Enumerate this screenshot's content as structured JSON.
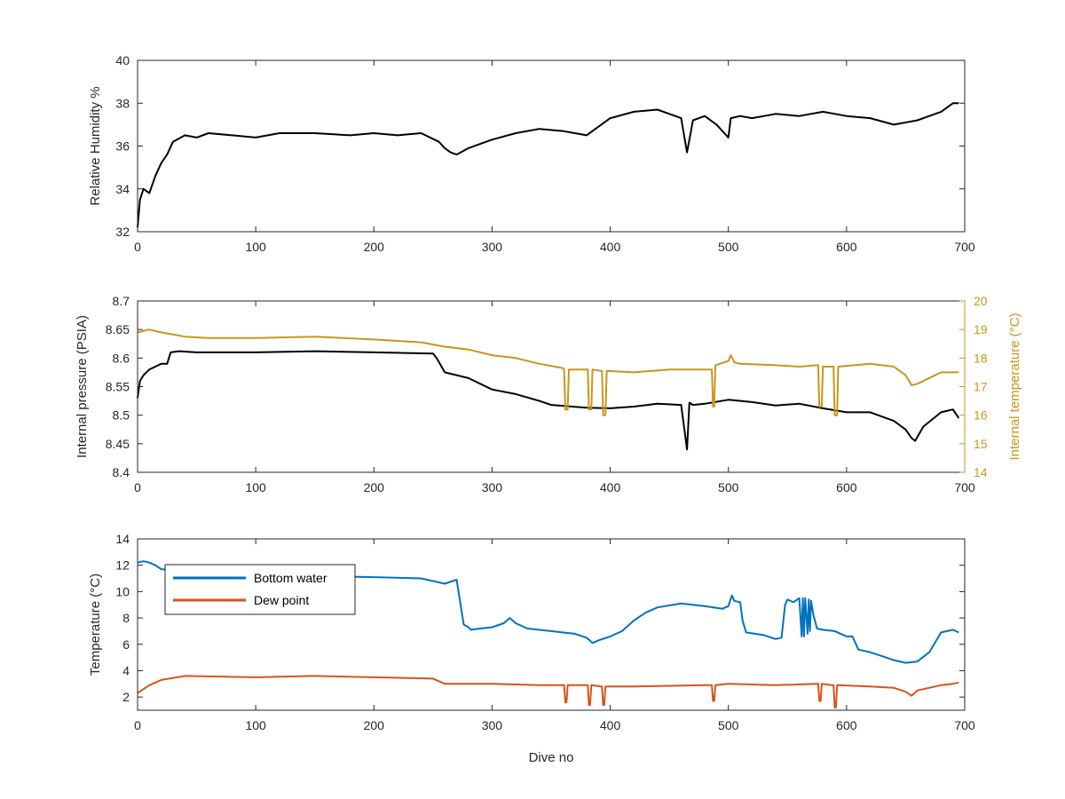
{
  "colors": {
    "black": "#000000",
    "axis": "#262626",
    "internal_temperature": "#C8961E",
    "bottom_water": "#0072BD",
    "dew_point": "#D95319"
  },
  "chart_data": [
    {
      "id": "humidity",
      "type": "line",
      "xlabel": "",
      "ylabel": "Relative Humidity %",
      "xlim": [
        0,
        700
      ],
      "ylim": [
        32,
        40
      ],
      "x_ticks": [
        0,
        100,
        200,
        300,
        400,
        500,
        600,
        700
      ],
      "y_ticks": [
        32,
        34,
        36,
        38,
        40
      ],
      "grid": false,
      "series": [
        {
          "color": "#000000",
          "x": [
            0,
            2,
            5,
            10,
            15,
            20,
            25,
            30,
            40,
            50,
            60,
            80,
            100,
            120,
            150,
            180,
            200,
            220,
            240,
            255,
            260,
            265,
            270,
            280,
            290,
            300,
            320,
            340,
            360,
            380,
            400,
            420,
            440,
            460,
            465,
            470,
            480,
            490,
            500,
            502,
            510,
            520,
            540,
            560,
            580,
            600,
            620,
            640,
            660,
            680,
            690,
            695
          ],
          "y": [
            32.2,
            33.5,
            34.0,
            33.8,
            34.6,
            35.2,
            35.6,
            36.2,
            36.5,
            36.4,
            36.6,
            36.5,
            36.4,
            36.6,
            36.6,
            36.5,
            36.6,
            36.5,
            36.6,
            36.2,
            35.9,
            35.7,
            35.6,
            35.9,
            36.1,
            36.3,
            36.6,
            36.8,
            36.7,
            36.5,
            37.3,
            37.6,
            37.7,
            37.3,
            35.7,
            37.2,
            37.4,
            37.0,
            36.4,
            37.3,
            37.4,
            37.3,
            37.5,
            37.4,
            37.6,
            37.4,
            37.3,
            37.0,
            37.2,
            37.6,
            38.0,
            38.0
          ]
        }
      ]
    },
    {
      "id": "pressure",
      "type": "line",
      "xlabel": "",
      "ylabel": "Internal pressure (PSIA)",
      "y2label": "Internal temperature (°C)",
      "xlim": [
        0,
        700
      ],
      "ylim": [
        8.4,
        8.7
      ],
      "y2lim": [
        14,
        20
      ],
      "x_ticks": [
        0,
        100,
        200,
        300,
        400,
        500,
        600,
        700
      ],
      "y_ticks": [
        8.4,
        8.45,
        8.5,
        8.55,
        8.6,
        8.65,
        8.7
      ],
      "y2_ticks": [
        14,
        15,
        16,
        17,
        18,
        19,
        20
      ],
      "grid": false,
      "series": [
        {
          "axis": "left",
          "color": "#000000",
          "x": [
            0,
            2,
            5,
            10,
            15,
            20,
            25,
            28,
            35,
            50,
            100,
            150,
            200,
            250,
            253,
            260,
            280,
            300,
            320,
            340,
            350,
            380,
            400,
            420,
            440,
            460,
            465,
            467,
            470,
            480,
            500,
            520,
            540,
            560,
            580,
            600,
            620,
            640,
            650,
            655,
            658,
            665,
            680,
            690,
            695
          ],
          "y": [
            8.53,
            8.56,
            8.57,
            8.58,
            8.585,
            8.59,
            8.59,
            8.61,
            8.612,
            8.61,
            8.61,
            8.612,
            8.61,
            8.608,
            8.6,
            8.575,
            8.565,
            8.545,
            8.537,
            8.525,
            8.518,
            8.513,
            8.512,
            8.515,
            8.52,
            8.518,
            8.44,
            8.522,
            8.518,
            8.52,
            8.527,
            8.523,
            8.517,
            8.52,
            8.512,
            8.505,
            8.505,
            8.49,
            8.475,
            8.46,
            8.455,
            8.48,
            8.505,
            8.51,
            8.495
          ]
        },
        {
          "axis": "right",
          "color": "#C8961E",
          "x": [
            0,
            10,
            20,
            40,
            60,
            100,
            150,
            200,
            240,
            260,
            280,
            300,
            320,
            340,
            360,
            361,
            362,
            364,
            365,
            380,
            381,
            382,
            384,
            385,
            392,
            393,
            394,
            396,
            397,
            420,
            450,
            480,
            486,
            487,
            488,
            489,
            500,
            502,
            505,
            510,
            540,
            560,
            575,
            576,
            577,
            579,
            580,
            588,
            589,
            590,
            592,
            593,
            620,
            640,
            650,
            655,
            660,
            670,
            680,
            690,
            695
          ],
          "y": [
            18.9,
            19.0,
            18.9,
            18.75,
            18.7,
            18.7,
            18.75,
            18.65,
            18.55,
            18.4,
            18.3,
            18.1,
            18.0,
            17.8,
            17.65,
            17.6,
            16.2,
            16.2,
            17.6,
            17.6,
            17.6,
            16.2,
            16.2,
            17.6,
            17.55,
            17.55,
            16.0,
            16.0,
            17.55,
            17.5,
            17.6,
            17.6,
            17.6,
            16.3,
            16.3,
            17.75,
            17.9,
            18.1,
            17.85,
            17.8,
            17.75,
            17.7,
            17.75,
            17.75,
            16.3,
            16.3,
            17.7,
            17.7,
            17.7,
            16.0,
            16.0,
            17.7,
            17.8,
            17.7,
            17.4,
            17.05,
            17.1,
            17.3,
            17.5,
            17.5,
            17.5
          ]
        }
      ]
    },
    {
      "id": "temperature",
      "type": "line",
      "xlabel": "Dive no",
      "ylabel": "Temperature (°C)",
      "xlim": [
        0,
        700
      ],
      "ylim": [
        1,
        14
      ],
      "x_ticks": [
        0,
        100,
        200,
        300,
        400,
        500,
        600,
        700
      ],
      "y_ticks": [
        2,
        4,
        6,
        8,
        10,
        12,
        14
      ],
      "grid": false,
      "legend": "top-left",
      "series": [
        {
          "name": "Bottom water",
          "color": "#0072BD",
          "x": [
            0,
            5,
            10,
            15,
            20,
            30,
            40,
            60,
            100,
            150,
            200,
            240,
            250,
            260,
            270,
            272,
            276,
            280,
            282,
            290,
            300,
            310,
            315,
            320,
            330,
            350,
            370,
            380,
            385,
            390,
            400,
            410,
            420,
            430,
            440,
            460,
            480,
            495,
            500,
            503,
            505,
            510,
            512,
            515,
            530,
            540,
            545,
            548,
            550,
            555,
            560,
            562,
            563,
            564,
            565,
            567,
            568,
            569,
            570,
            572,
            575,
            580,
            590,
            600,
            605,
            610,
            620,
            630,
            640,
            650,
            660,
            670,
            680,
            690,
            695
          ],
          "y": [
            12.2,
            12.3,
            12.2,
            12.0,
            11.7,
            11.6,
            11.5,
            11.4,
            11.3,
            11.2,
            11.1,
            11.0,
            10.8,
            10.6,
            10.9,
            9.8,
            7.5,
            7.3,
            7.1,
            7.2,
            7.3,
            7.6,
            8.0,
            7.6,
            7.2,
            7.0,
            6.8,
            6.5,
            6.1,
            6.3,
            6.6,
            7.0,
            7.8,
            8.4,
            8.8,
            9.1,
            8.9,
            8.7,
            8.9,
            9.7,
            9.3,
            9.2,
            7.8,
            6.9,
            6.7,
            6.4,
            6.5,
            9.0,
            9.4,
            9.2,
            9.5,
            6.6,
            9.5,
            6.6,
            9.5,
            6.8,
            9.4,
            7.0,
            9.3,
            8.2,
            7.2,
            7.1,
            7.0,
            6.6,
            6.6,
            5.6,
            5.4,
            5.1,
            4.8,
            4.6,
            4.7,
            5.4,
            6.9,
            7.1,
            6.9
          ]
        },
        {
          "name": "Dew point",
          "color": "#D95319",
          "x": [
            0,
            5,
            10,
            20,
            40,
            100,
            150,
            200,
            250,
            260,
            280,
            300,
            340,
            360,
            361,
            362,
            363,
            364,
            380,
            381,
            382,
            383,
            384,
            392,
            393,
            394,
            395,
            396,
            420,
            480,
            486,
            487,
            488,
            489,
            500,
            540,
            575,
            576,
            577,
            578,
            579,
            588,
            589,
            590,
            591,
            592,
            620,
            640,
            650,
            655,
            660,
            680,
            690,
            695
          ],
          "y": [
            2.3,
            2.6,
            2.9,
            3.3,
            3.6,
            3.5,
            3.6,
            3.5,
            3.4,
            3.0,
            3.0,
            3.0,
            2.9,
            2.9,
            2.9,
            1.6,
            1.6,
            2.9,
            2.9,
            2.9,
            1.4,
            1.4,
            2.9,
            2.8,
            2.8,
            1.4,
            1.4,
            2.8,
            2.8,
            2.9,
            2.9,
            1.7,
            1.7,
            2.9,
            3.0,
            2.9,
            3.0,
            3.0,
            1.7,
            1.7,
            3.0,
            2.9,
            2.9,
            1.2,
            1.2,
            2.9,
            2.8,
            2.7,
            2.4,
            2.1,
            2.5,
            2.9,
            3.0,
            3.1
          ]
        }
      ]
    }
  ]
}
